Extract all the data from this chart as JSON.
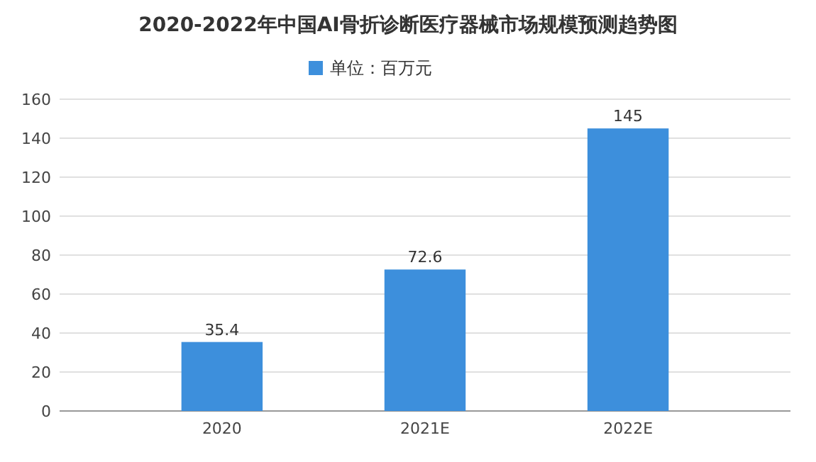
{
  "chart_data": {
    "type": "bar",
    "title": "2020-2022年中国AI骨折诊断医疗器械市场规模预测趋势图",
    "categories": [
      "2020",
      "2021E",
      "2022E"
    ],
    "series": [
      {
        "name": "单位：百万元",
        "color": "#3d8fdc",
        "values": [
          35.4,
          72.6,
          145
        ]
      }
    ],
    "ylim": [
      0,
      160
    ],
    "yticks": [
      0,
      20,
      40,
      60,
      80,
      100,
      120,
      140,
      160
    ],
    "grid": "y",
    "legend": "top",
    "data_labels": true
  }
}
